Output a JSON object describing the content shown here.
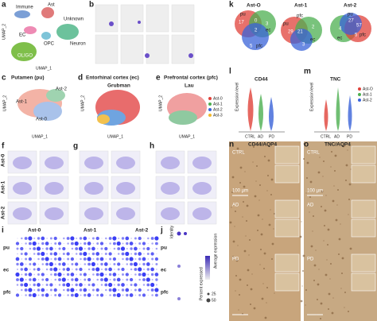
{
  "panels": {
    "a": {
      "letter": "a",
      "clusters": [
        "Immune",
        "Ast",
        "Unknown",
        "EC",
        "OPC",
        "Neuron",
        "OLIGO"
      ],
      "x_label": "UMAP_1",
      "y_label": "UMAP_2"
    },
    "b": {
      "letter": "b"
    },
    "c": {
      "letter": "c",
      "title": "Putamen (pu)",
      "clusters": [
        "Ast-2",
        "Ast-1",
        "Ast-0"
      ],
      "x_label": "UMAP_1",
      "y_label": "UMAP_2"
    },
    "d": {
      "letter": "d",
      "title": "Entorhinal cortex (ec)",
      "source": "Grubman",
      "x_label": "UMAP_1",
      "y_label": "UMAP_2"
    },
    "e": {
      "letter": "e",
      "title": "Prefrontal cortex (pfc)",
      "source": "Lau",
      "legend": [
        "Ast-0",
        "Ast-1",
        "Ast-2",
        "Ast-3"
      ],
      "x_label": "UMAP_1",
      "y_label": "UMAP_2"
    },
    "f": {
      "letter": "f",
      "rows": [
        "Ast-0",
        "Ast-1",
        "Ast-2"
      ]
    },
    "g": {
      "letter": "g"
    },
    "h": {
      "letter": "h"
    },
    "i": {
      "letter": "i",
      "groups": [
        "Ast-0",
        "Ast-1",
        "Ast-2"
      ],
      "rows": [
        "pu",
        "ec",
        "pfc"
      ]
    },
    "j": {
      "letter": "j",
      "rows": [
        "pu",
        "ec",
        "pfc"
      ],
      "y_label": "Identity",
      "legend_avg": "Average expression",
      "legend_pct": "Percent expressed",
      "pct_ticks": [
        "25",
        "50"
      ]
    },
    "k": {
      "letter": "k",
      "venns": [
        {
          "title": "Ast-O",
          "labels": [
            "pu",
            "ec",
            "pfc"
          ],
          "numbers": [
            "17",
            "0",
            "3",
            "2",
            "5"
          ]
        },
        {
          "title": "Ast-1",
          "labels": [
            "pfc",
            "pu",
            "ec"
          ],
          "numbers": [
            "29",
            "21",
            "2",
            "3"
          ]
        },
        {
          "title": "Ast-2",
          "labels": [
            "pu",
            "pfc",
            "ec"
          ],
          "numbers": [
            "27",
            "4",
            "57",
            "5"
          ]
        }
      ]
    },
    "l": {
      "letter": "l",
      "gene": "CD44",
      "y_label": "Expression level",
      "categories": [
        "CTRL",
        "AD",
        "PD"
      ]
    },
    "m": {
      "letter": "m",
      "gene": "TNC",
      "y_label": "Expression level",
      "categories": [
        "CTRL",
        "AD",
        "PD"
      ],
      "legend": [
        "Ast-O",
        "Ast-1",
        "Ast-2"
      ]
    },
    "n": {
      "letter": "n",
      "title": "CD44/AQP4",
      "rows": [
        "CTRL",
        "AD",
        "PD"
      ],
      "scale": "100 µm"
    },
    "o": {
      "letter": "o",
      "title": "TNC/AQP4",
      "rows": [
        "CTRL",
        "AD",
        "PD"
      ],
      "scale": "100 µm"
    }
  }
}
